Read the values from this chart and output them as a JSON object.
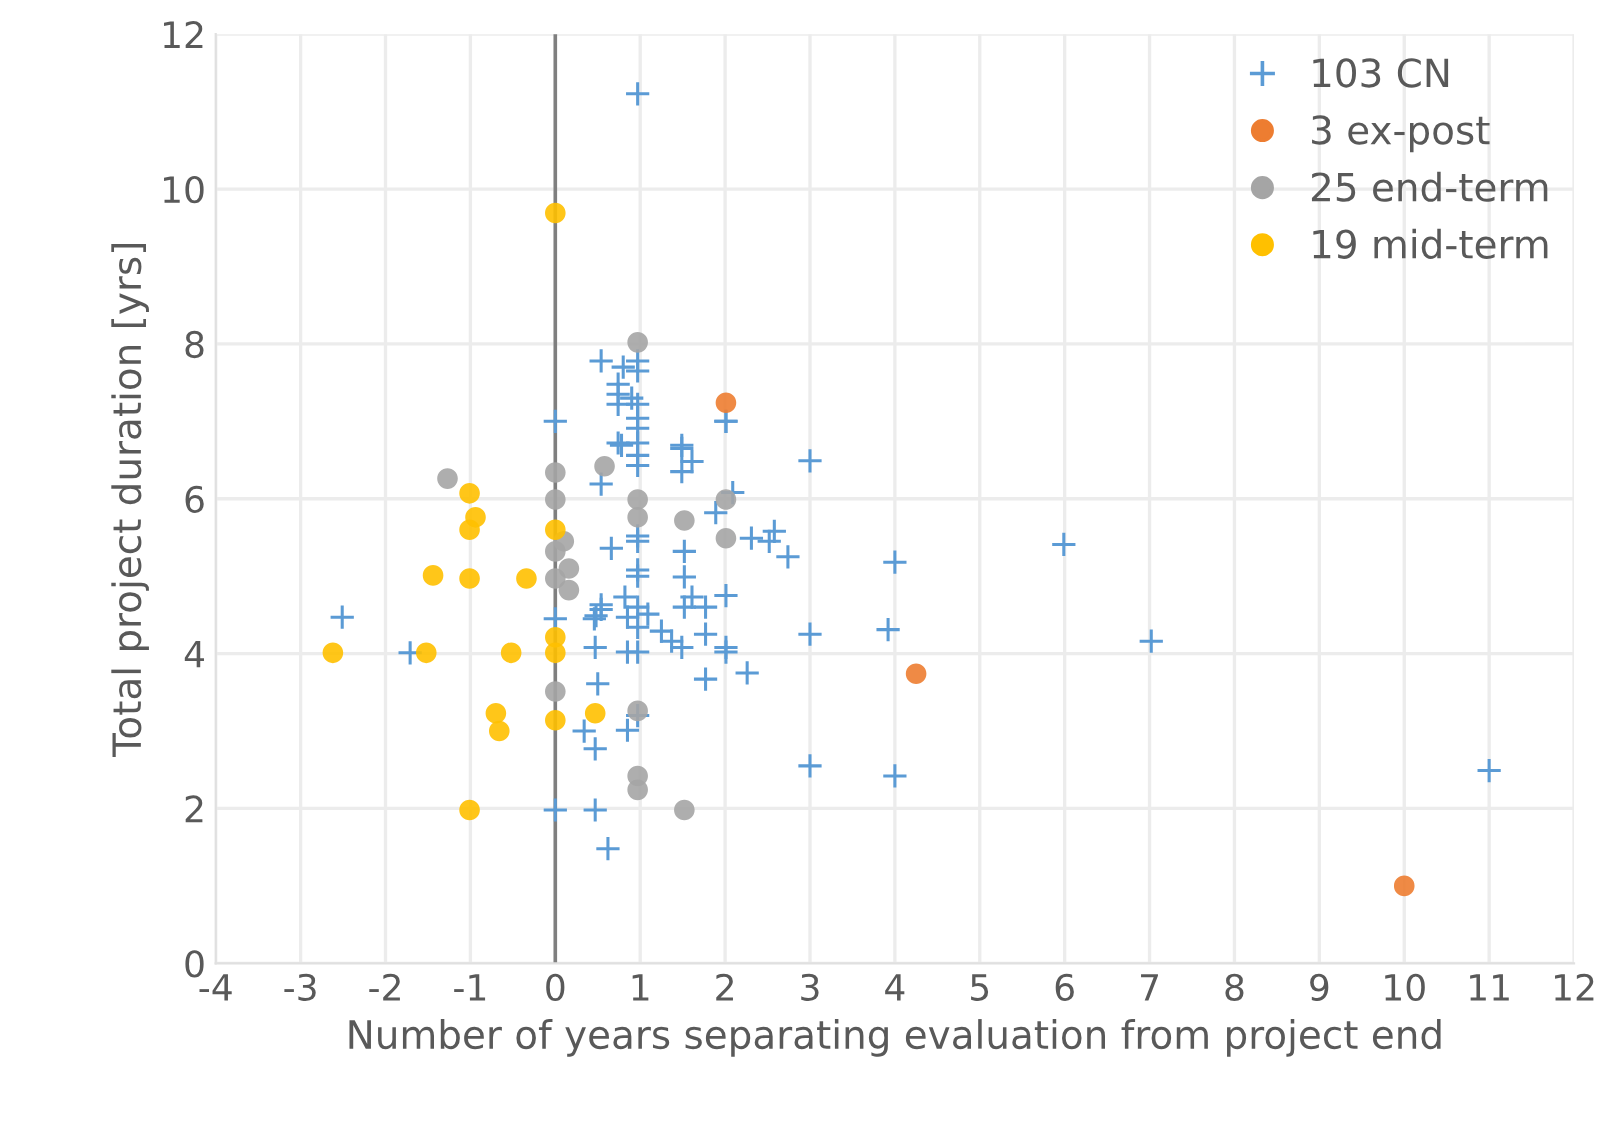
{
  "chart_data": {
    "type": "scatter",
    "xlabel": "Number of years separating evaluation from project end",
    "ylabel": "Total project duration [yrs]",
    "xlim": [
      -4,
      12
    ],
    "xticks": [
      -4,
      -3,
      -2,
      -1,
      0,
      1,
      2,
      3,
      4,
      5,
      6,
      7,
      8,
      9,
      10,
      11,
      12
    ],
    "ylim": [
      0,
      12
    ],
    "yticks": [
      0,
      2,
      4,
      6,
      8,
      10,
      12
    ],
    "grid": true,
    "legend": "top right",
    "ref_lines": [
      {
        "axis": "x",
        "value": 0,
        "color": "#7f7f7f"
      }
    ],
    "series": [
      {
        "name": "103 CN",
        "color": "#5b9bd5",
        "marker": "cross",
        "x": [
          0.54,
          0,
          0.54,
          0.66,
          -2.51,
          -1.71,
          0,
          0.46,
          0.54,
          0.47,
          0.5,
          0.34,
          0.47,
          0,
          0.47,
          0.62,
          0.97,
          0.8,
          0.97,
          0.97,
          0.74,
          0.74,
          0.9,
          0.74,
          0.97,
          0.97,
          0.97,
          0.74,
          0.97,
          1.49,
          2.01,
          3.0,
          0.78,
          0.97,
          0.97,
          1.49,
          1.61,
          1.49,
          0.97,
          0.97,
          1.52,
          2.09,
          1.89,
          2.31,
          2.52,
          2.58,
          2.74,
          4.0,
          0.97,
          0.97,
          1.52,
          0.54,
          0.48,
          0.82,
          0.97,
          1.09,
          0.85,
          0.97,
          1.25,
          1.37,
          1.52,
          1.61,
          1.49,
          1.77,
          1.77,
          2.01,
          2.01,
          2.01,
          0.85,
          0.97,
          3.0,
          3.92,
          1.77,
          2.26,
          0.85,
          0.97,
          3.0,
          4.0,
          5.99,
          7.02,
          11.0,
          2.01
        ],
        "values": [
          7.78,
          7.0,
          6.19,
          5.36,
          4.47,
          4.01,
          4.45,
          4.45,
          4.57,
          4.08,
          3.61,
          3.0,
          2.77,
          1.98,
          1.98,
          1.48,
          11.23,
          7.7,
          7.78,
          7.65,
          7.48,
          7.35,
          7.3,
          7.22,
          7.22,
          7.04,
          6.91,
          6.72,
          6.72,
          6.69,
          7.0,
          6.49,
          6.69,
          6.56,
          6.43,
          6.65,
          6.48,
          6.35,
          5.52,
          5.45,
          5.32,
          6.08,
          5.82,
          5.49,
          5.45,
          5.58,
          5.25,
          5.18,
          5.08,
          5.0,
          4.99,
          4.63,
          4.49,
          4.73,
          4.6,
          4.51,
          4.47,
          4.34,
          4.29,
          4.16,
          4.6,
          4.73,
          4.08,
          4.6,
          4.25,
          4.75,
          4.08,
          4.02,
          4.02,
          4.02,
          4.25,
          4.31,
          3.67,
          3.75,
          3.01,
          3.2,
          2.55,
          2.42,
          5.41,
          4.16,
          2.49,
          7.0
        ]
      },
      {
        "name": "3 ex-post",
        "color": "#ed7d31",
        "marker": "circle",
        "x": [
          2.01,
          4.25,
          10.0
        ],
        "values": [
          7.24,
          3.74,
          1.0
        ]
      },
      {
        "name": "25 end-term",
        "color": "#a5a5a5",
        "marker": "circle",
        "x": [
          -1.27,
          0,
          0,
          0.1,
          0,
          0,
          0.16,
          0.16,
          0,
          0.58,
          0.97,
          0.97,
          0.97,
          1.52,
          2.01,
          2.01,
          0.97,
          0.97,
          0.97,
          1.52
        ],
        "values": [
          6.26,
          6.34,
          5.99,
          5.45,
          5.32,
          4.97,
          5.1,
          4.82,
          3.51,
          6.42,
          8.02,
          5.99,
          5.76,
          5.72,
          5.99,
          5.49,
          3.26,
          2.42,
          2.24,
          1.98
        ]
      },
      {
        "name": "19 mid-term",
        "color": "#ffc000",
        "marker": "circle",
        "x": [
          0,
          -1.01,
          -0.94,
          -1.01,
          0,
          -1.44,
          -1.01,
          -0.34,
          -2.62,
          -1.52,
          -0.52,
          0,
          0,
          -0.7,
          -0.66,
          0,
          0.47,
          -1.01
        ],
        "values": [
          9.69,
          6.07,
          5.76,
          5.6,
          5.6,
          5.01,
          4.97,
          4.97,
          4.01,
          4.01,
          4.01,
          4.21,
          4.01,
          3.23,
          3.0,
          3.14,
          3.23,
          1.98
        ]
      }
    ]
  }
}
